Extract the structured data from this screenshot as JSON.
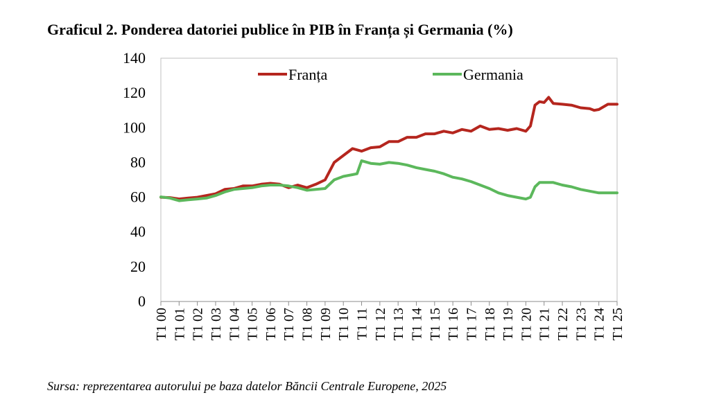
{
  "title": "Graficul 2. Ponderea datoriei publice în PIB în Franța și Germania (%)",
  "source": "Sursa: reprezentarea autorului pe baza datelor Băncii Centrale Europene, 2025",
  "chart_data": {
    "type": "line",
    "title": "Graficul 2. Ponderea datoriei publice în PIB în Franța și Germania (%)",
    "xlabel": "",
    "ylabel": "",
    "ylim": [
      0,
      140
    ],
    "yticks": [
      0,
      20,
      40,
      60,
      80,
      100,
      120,
      140
    ],
    "x_tick_labels": [
      "T1 00",
      "T1 01",
      "T1 02",
      "T1 03",
      "T1 04",
      "T1 05",
      "T1 06",
      "T1 07",
      "T1 08",
      "T1 09",
      "T1 10",
      "T1 11",
      "T1 12",
      "T1 13",
      "T1 14",
      "T1 15",
      "T1 16",
      "T1 17",
      "T1 18",
      "T1 19",
      "T1 20",
      "T1 21",
      "T1 22",
      "T1 23",
      "T1 24",
      "T1 25"
    ],
    "grid": false,
    "legend": "top",
    "colors": {
      "Franța": "#b5261e",
      "Germania": "#5cb85c"
    },
    "series": [
      {
        "name": "Franța",
        "color": "#b5261e",
        "values": [
          {
            "x": 2000.0,
            "y": 60
          },
          {
            "x": 2000.5,
            "y": 59.8
          },
          {
            "x": 2001.0,
            "y": 59
          },
          {
            "x": 2001.5,
            "y": 59.5
          },
          {
            "x": 2002.0,
            "y": 60
          },
          {
            "x": 2002.5,
            "y": 61
          },
          {
            "x": 2003.0,
            "y": 62
          },
          {
            "x": 2003.5,
            "y": 64.5
          },
          {
            "x": 2004.0,
            "y": 65
          },
          {
            "x": 2004.5,
            "y": 66.5
          },
          {
            "x": 2005.0,
            "y": 66.5
          },
          {
            "x": 2005.5,
            "y": 67.5
          },
          {
            "x": 2006.0,
            "y": 68
          },
          {
            "x": 2006.5,
            "y": 67.5
          },
          {
            "x": 2007.0,
            "y": 65.5
          },
          {
            "x": 2007.5,
            "y": 67
          },
          {
            "x": 2008.0,
            "y": 65.5
          },
          {
            "x": 2008.5,
            "y": 67.5
          },
          {
            "x": 2009.0,
            "y": 70
          },
          {
            "x": 2009.5,
            "y": 80
          },
          {
            "x": 2010.0,
            "y": 84
          },
          {
            "x": 2010.5,
            "y": 88
          },
          {
            "x": 2011.0,
            "y": 86.5
          },
          {
            "x": 2011.5,
            "y": 88.5
          },
          {
            "x": 2012.0,
            "y": 89
          },
          {
            "x": 2012.5,
            "y": 92
          },
          {
            "x": 2013.0,
            "y": 92
          },
          {
            "x": 2013.5,
            "y": 94.5
          },
          {
            "x": 2014.0,
            "y": 94.5
          },
          {
            "x": 2014.5,
            "y": 96.5
          },
          {
            "x": 2015.0,
            "y": 96.5
          },
          {
            "x": 2015.5,
            "y": 98
          },
          {
            "x": 2016.0,
            "y": 97
          },
          {
            "x": 2016.5,
            "y": 99
          },
          {
            "x": 2017.0,
            "y": 98
          },
          {
            "x": 2017.5,
            "y": 101
          },
          {
            "x": 2018.0,
            "y": 99
          },
          {
            "x": 2018.5,
            "y": 99.5
          },
          {
            "x": 2019.0,
            "y": 98.5
          },
          {
            "x": 2019.5,
            "y": 99.5
          },
          {
            "x": 2020.0,
            "y": 98
          },
          {
            "x": 2020.25,
            "y": 101
          },
          {
            "x": 2020.5,
            "y": 113
          },
          {
            "x": 2020.75,
            "y": 115
          },
          {
            "x": 2021.0,
            "y": 114.5
          },
          {
            "x": 2021.25,
            "y": 117.5
          },
          {
            "x": 2021.5,
            "y": 114
          },
          {
            "x": 2022.0,
            "y": 113.5
          },
          {
            "x": 2022.5,
            "y": 113
          },
          {
            "x": 2023.0,
            "y": 111.5
          },
          {
            "x": 2023.5,
            "y": 111
          },
          {
            "x": 2023.75,
            "y": 110
          },
          {
            "x": 2024.0,
            "y": 110.5
          },
          {
            "x": 2024.5,
            "y": 113.5
          },
          {
            "x": 2025.0,
            "y": 113.5
          }
        ]
      },
      {
        "name": "Germania",
        "color": "#5cb85c",
        "values": [
          {
            "x": 2000.0,
            "y": 60.2
          },
          {
            "x": 2000.5,
            "y": 59.5
          },
          {
            "x": 2001.0,
            "y": 58
          },
          {
            "x": 2001.5,
            "y": 58.5
          },
          {
            "x": 2002.0,
            "y": 59
          },
          {
            "x": 2002.5,
            "y": 59.5
          },
          {
            "x": 2003.0,
            "y": 61
          },
          {
            "x": 2003.5,
            "y": 63
          },
          {
            "x": 2004.0,
            "y": 64.5
          },
          {
            "x": 2004.5,
            "y": 65
          },
          {
            "x": 2005.0,
            "y": 65.5
          },
          {
            "x": 2005.5,
            "y": 66.5
          },
          {
            "x": 2006.0,
            "y": 67
          },
          {
            "x": 2006.5,
            "y": 67
          },
          {
            "x": 2007.0,
            "y": 66.5
          },
          {
            "x": 2007.5,
            "y": 65.5
          },
          {
            "x": 2008.0,
            "y": 64
          },
          {
            "x": 2008.5,
            "y": 64.5
          },
          {
            "x": 2009.0,
            "y": 65
          },
          {
            "x": 2009.5,
            "y": 70
          },
          {
            "x": 2010.0,
            "y": 72
          },
          {
            "x": 2010.5,
            "y": 73
          },
          {
            "x": 2010.75,
            "y": 73.5
          },
          {
            "x": 2011.0,
            "y": 81
          },
          {
            "x": 2011.5,
            "y": 79.5
          },
          {
            "x": 2012.0,
            "y": 79
          },
          {
            "x": 2012.5,
            "y": 80
          },
          {
            "x": 2013.0,
            "y": 79.5
          },
          {
            "x": 2013.5,
            "y": 78.5
          },
          {
            "x": 2014.0,
            "y": 77
          },
          {
            "x": 2014.5,
            "y": 76
          },
          {
            "x": 2015.0,
            "y": 75
          },
          {
            "x": 2015.5,
            "y": 73.5
          },
          {
            "x": 2016.0,
            "y": 71.5
          },
          {
            "x": 2016.5,
            "y": 70.5
          },
          {
            "x": 2017.0,
            "y": 69
          },
          {
            "x": 2017.5,
            "y": 67
          },
          {
            "x": 2018.0,
            "y": 65
          },
          {
            "x": 2018.5,
            "y": 62.5
          },
          {
            "x": 2019.0,
            "y": 61
          },
          {
            "x": 2019.5,
            "y": 60
          },
          {
            "x": 2020.0,
            "y": 59
          },
          {
            "x": 2020.25,
            "y": 60
          },
          {
            "x": 2020.5,
            "y": 66
          },
          {
            "x": 2020.75,
            "y": 68.5
          },
          {
            "x": 2021.0,
            "y": 68.5
          },
          {
            "x": 2021.5,
            "y": 68.5
          },
          {
            "x": 2022.0,
            "y": 67
          },
          {
            "x": 2022.5,
            "y": 66
          },
          {
            "x": 2023.0,
            "y": 64.5
          },
          {
            "x": 2023.5,
            "y": 63.5
          },
          {
            "x": 2024.0,
            "y": 62.5
          },
          {
            "x": 2024.5,
            "y": 62.5
          },
          {
            "x": 2025.0,
            "y": 62.5
          }
        ]
      }
    ]
  }
}
